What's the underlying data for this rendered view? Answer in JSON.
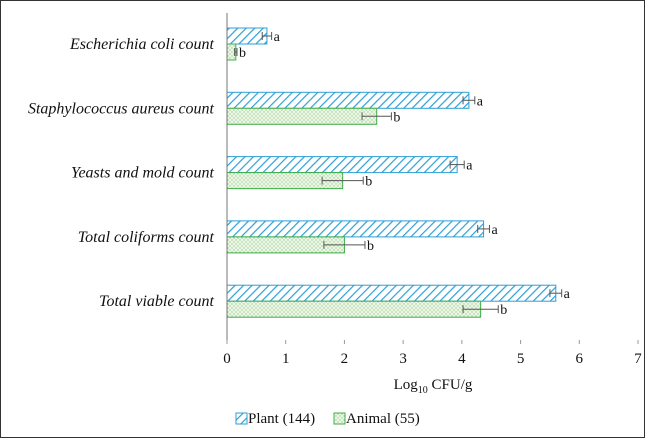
{
  "chart_data": {
    "type": "bar",
    "orientation": "horizontal",
    "categories": [
      "Escherichia coli count",
      "Staphylococcus aureus count",
      "Yeasts and mold count",
      "Total coliforms count",
      "Total viable count"
    ],
    "series": [
      {
        "name": "Plant (144)",
        "color": "#2e9fd6",
        "pattern": "diagonal-hatch",
        "values": [
          0.68,
          4.12,
          3.92,
          4.37,
          5.6
        ],
        "errors": [
          0.08,
          0.1,
          0.12,
          0.1,
          0.1
        ],
        "labels": [
          "a",
          "a",
          "a",
          "a",
          "a"
        ]
      },
      {
        "name": "Animal (55)",
        "color": "#3fae49",
        "pattern": "dotted",
        "values": [
          0.15,
          2.55,
          1.97,
          2.0,
          4.32
        ],
        "errors": [
          0.02,
          0.25,
          0.35,
          0.35,
          0.3
        ],
        "labels": [
          "b",
          "b",
          "b",
          "b",
          "b"
        ]
      }
    ],
    "xlim": [
      0,
      7
    ],
    "xticks": [
      "0",
      "1",
      "2",
      "3",
      "4",
      "5",
      "6",
      "7"
    ],
    "xlabel_main": "Log",
    "xlabel_sub": "10",
    "xlabel_rest": " CFU/g",
    "ylabel": "",
    "legend_position": "bottom"
  }
}
